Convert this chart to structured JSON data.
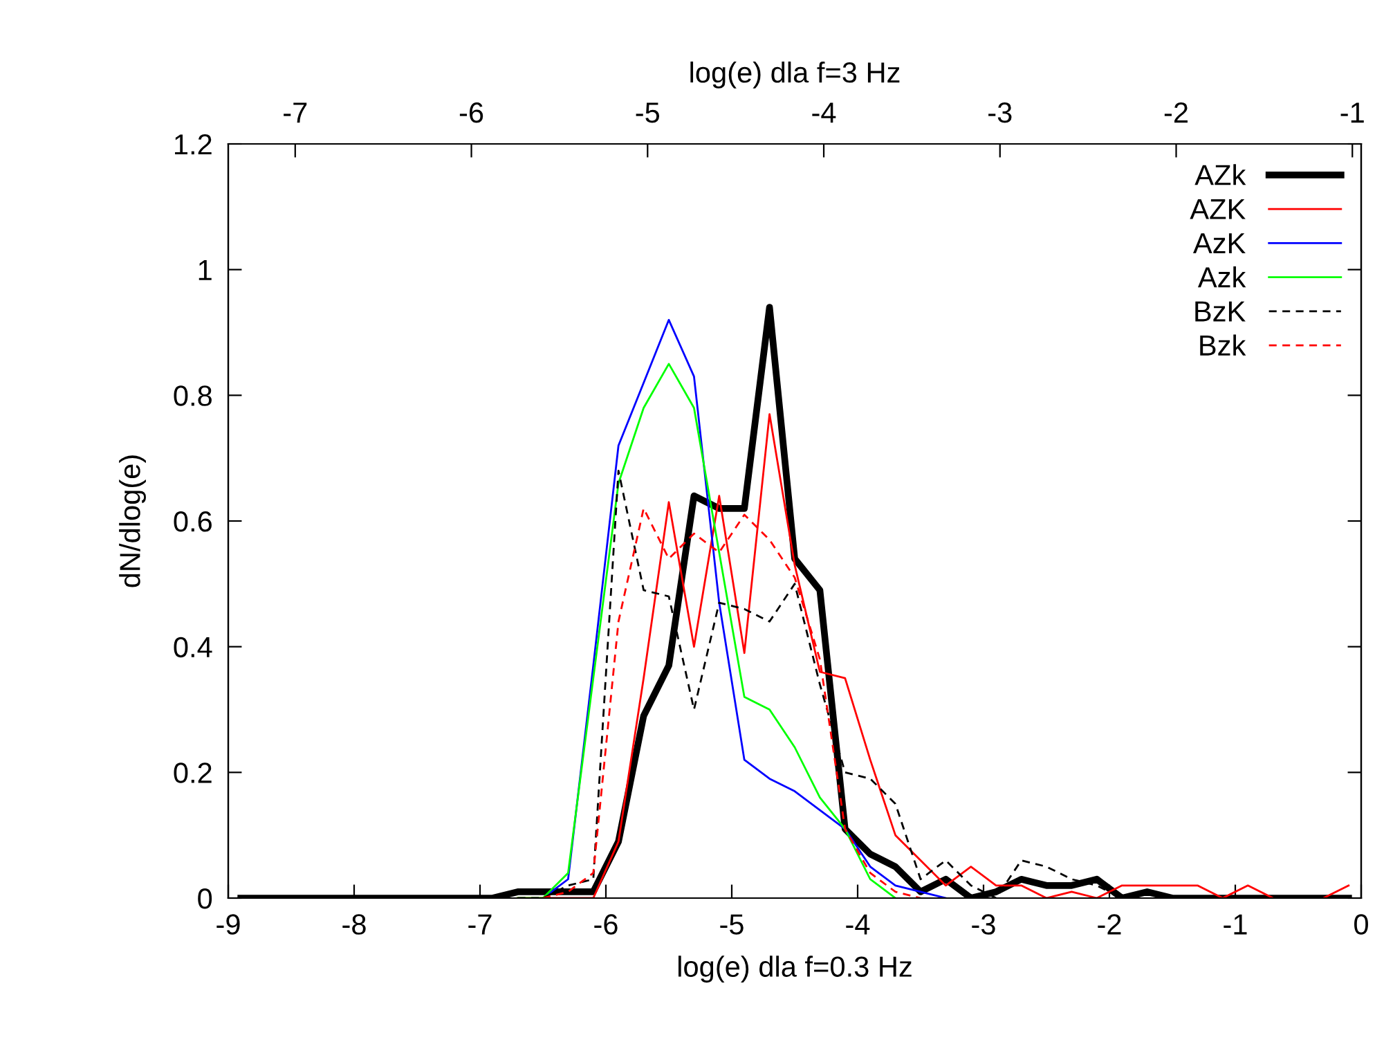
{
  "chart_data": {
    "type": "line",
    "xlabel": "log(e) dla f=0.3 Hz",
    "ylabel": "dN/dlog(e)",
    "x2label": "log(e) dla f=3 Hz",
    "x": [
      -8.9,
      -8.7,
      -8.5,
      -8.3,
      -8.1,
      -7.9,
      -7.7,
      -7.5,
      -7.3,
      -7.1,
      -6.9,
      -6.7,
      -6.5,
      -6.3,
      -6.1,
      -5.9,
      -5.7,
      -5.5,
      -5.3,
      -5.1,
      -4.9,
      -4.7,
      -4.5,
      -4.3,
      -4.1,
      -3.9,
      -3.7,
      -3.5,
      -3.3,
      -3.1,
      -2.9,
      -2.7,
      -2.5,
      -2.3,
      -2.1,
      -1.9,
      -1.7,
      -1.5,
      -1.3,
      -1.1,
      -0.9,
      -0.7,
      -0.5,
      -0.3,
      -0.1
    ],
    "series": [
      {
        "name": "AZk",
        "color": "#000000",
        "line_style": "solid",
        "values": [
          0,
          0,
          0,
          0,
          0,
          0,
          0,
          0,
          0,
          0,
          0,
          0.01,
          0.01,
          0.01,
          0.01,
          0.09,
          0.29,
          0.37,
          0.64,
          0.62,
          0.62,
          0.94,
          0.54,
          0.49,
          0.11,
          0.07,
          0.05,
          0.01,
          0.03,
          0,
          0.01,
          0.03,
          0.02,
          0.02,
          0.03,
          0,
          0.01,
          0,
          0,
          0,
          0,
          0,
          0,
          0,
          0
        ]
      },
      {
        "name": "AZK",
        "color": "#ff0000",
        "line_style": "solid",
        "values": [
          null,
          null,
          null,
          null,
          null,
          null,
          null,
          null,
          null,
          null,
          null,
          0,
          0,
          0,
          0,
          0.09,
          0.35,
          0.63,
          0.4,
          0.64,
          0.39,
          0.77,
          0.53,
          0.36,
          0.35,
          0.22,
          0.1,
          0.06,
          0.02,
          0.05,
          0.02,
          0.02,
          0,
          0.01,
          0,
          0.02,
          0.02,
          0.02,
          0.02,
          0,
          0.02,
          0,
          null,
          0,
          0.02
        ]
      },
      {
        "name": "AzK",
        "color": "#0000ff",
        "line_style": "solid",
        "values": [
          null,
          null,
          null,
          null,
          null,
          null,
          null,
          null,
          null,
          null,
          null,
          null,
          0,
          0.03,
          0.37,
          0.72,
          0.82,
          0.92,
          0.83,
          0.47,
          0.22,
          0.19,
          0.17,
          0.14,
          0.11,
          0.05,
          0.02,
          0.01,
          0,
          null,
          null,
          null,
          null,
          null,
          null,
          null,
          null,
          null,
          null,
          null,
          null,
          null,
          null,
          null,
          null
        ]
      },
      {
        "name": "Azk",
        "color": "#00ff00",
        "line_style": "solid",
        "values": [
          null,
          null,
          null,
          null,
          null,
          null,
          null,
          null,
          null,
          null,
          null,
          0,
          0,
          0.04,
          0.35,
          0.66,
          0.78,
          0.85,
          0.78,
          0.55,
          0.32,
          0.3,
          0.24,
          0.16,
          0.11,
          0.03,
          0,
          null,
          null,
          null,
          null,
          null,
          null,
          null,
          null,
          null,
          null,
          null,
          null,
          null,
          null,
          null,
          null,
          null,
          null
        ]
      },
      {
        "name": "BzK",
        "color": "#000000",
        "line_style": "dashed",
        "values": [
          null,
          null,
          null,
          null,
          null,
          null,
          null,
          null,
          null,
          null,
          null,
          0,
          0,
          0.02,
          0.03,
          0.68,
          0.49,
          0.48,
          0.3,
          0.47,
          0.46,
          0.44,
          0.5,
          0.34,
          0.2,
          0.19,
          0.15,
          0.03,
          0.06,
          0.02,
          0,
          0.06,
          0.05,
          0.03,
          0.02,
          0,
          null,
          null,
          null,
          null,
          null,
          null,
          null,
          null,
          null
        ]
      },
      {
        "name": "Bzk",
        "color": "#ff0000",
        "line_style": "dashed",
        "values": [
          null,
          null,
          null,
          null,
          null,
          null,
          null,
          null,
          null,
          null,
          null,
          null,
          0,
          0.01,
          0.04,
          0.44,
          0.62,
          0.54,
          0.58,
          0.55,
          0.61,
          0.57,
          0.51,
          0.38,
          0.11,
          0.04,
          0.01,
          0,
          null,
          null,
          null,
          null,
          null,
          null,
          null,
          null,
          null,
          null,
          null,
          null,
          null,
          null,
          null,
          null,
          null
        ]
      }
    ],
    "xlim": [
      -9,
      0
    ],
    "xticks": [
      -9,
      -8,
      -7,
      -6,
      -5,
      -4,
      -3,
      -2,
      -1,
      0
    ],
    "ylim": [
      0,
      1.2
    ],
    "yticks": [
      0,
      0.2,
      0.4,
      0.6,
      0.8,
      1,
      1.2
    ],
    "x2lim": [
      -7.38,
      -0.95
    ],
    "x2ticks": [
      -7,
      -6,
      -5,
      -4,
      -3,
      -2,
      -1
    ],
    "legend": "top right",
    "grid": false
  }
}
